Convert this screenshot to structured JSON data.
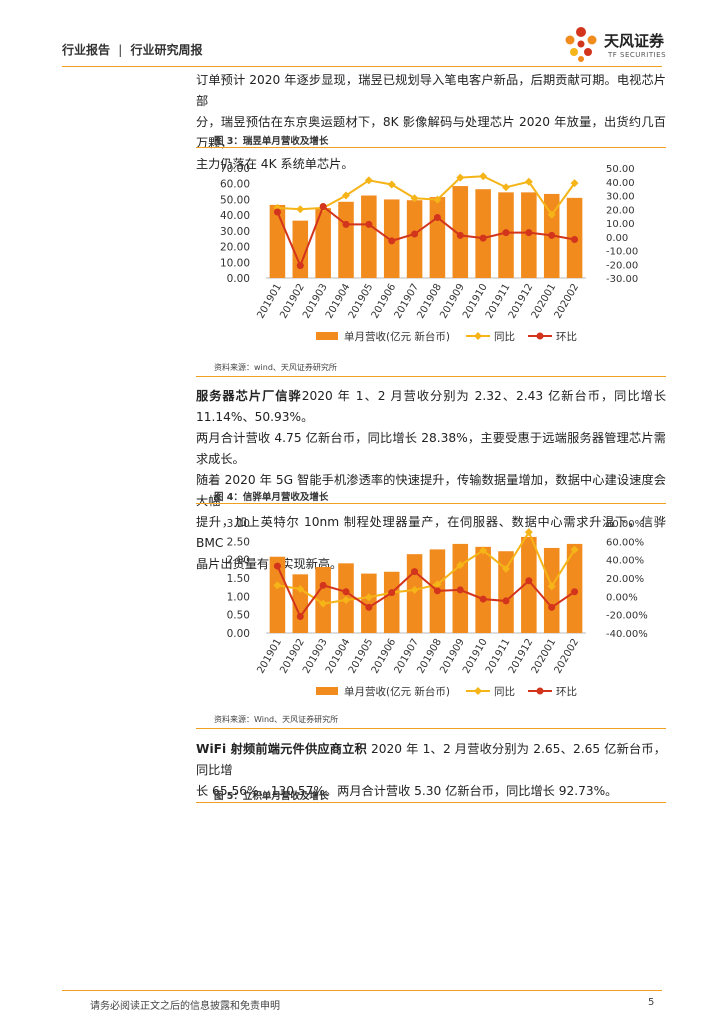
{
  "header": {
    "section": "行业报告",
    "separator": "|",
    "subsection": "行业研究周报",
    "logo_cn": "天风证券",
    "logo_en": "TF SECURITIES"
  },
  "paragraphs": {
    "p1_line1": "订单预计 2020 年逐步显现，瑞昱已规划导入笔电客户新品，后期贡献可期。电视芯片部",
    "p1_line2": "分，瑞昱预估在东京奥运题材下，8K 影像解码与处理芯片 2020 年放量，出货约几百万颗，",
    "p1_line3": "主力仍落在 4K 系统单芯片。",
    "p2_bold": "服务器芯片厂信骅",
    "p2_line1_rest": "2020 年 1、2 月营收分别为 2.32、2.43 亿新台币，同比增长 11.14%、50.93%。",
    "p2_line2": "两月合计营收 4.75 亿新台币，同比增长 28.38%，主要受惠于远端服务器管理芯片需求成长。",
    "p2_line3": "随着 2020 年 5G 智能手机渗透率的快速提升，传输数据量增加，数据中心建设速度会大幅",
    "p2_line4": "提升，加上英特尔 10nm 制程处理器量产，在伺服器、数据中心需求升温下，信骅 BMC",
    "p2_line5": "晶片出货量有望实现新高。",
    "p3_bold": "WiFi 射频前端元件供应商立积",
    "p3_line1_rest": " 2020 年 1、2 月营收分别为 2.65、2.65 亿新台币，同比增",
    "p3_line2": "长 65.56%、130.57%。两月合计营收 5.30 亿新台币，同比增长 92.73%。"
  },
  "figures": {
    "fig3_title": "图 3：瑞昱单月营收及增长",
    "fig3_source": "资料来源：wind、天风证券研究所",
    "fig4_title": "图 4：信骅单月营收及增长",
    "fig4_source": "资料来源：Wind、天风证券研究所",
    "fig5_title": "图 5：立积单月营收及增长"
  },
  "chart_data": [
    {
      "type": "bar",
      "categories": [
        "201901",
        "201902",
        "201903",
        "201904",
        "201905",
        "201906",
        "201907",
        "201908",
        "201909",
        "201910",
        "201911",
        "201912",
        "202001",
        "202002"
      ],
      "series": [
        {
          "name": "单月营收(亿元 新台币)",
          "type": "bar",
          "axis": "left",
          "color": "#f28b1e",
          "values": [
            46.5,
            36.5,
            44.5,
            48.5,
            52.5,
            50,
            49.5,
            51.5,
            58.5,
            56.5,
            54.5,
            54.5,
            53.5,
            51
          ]
        },
        {
          "name": "同比",
          "type": "line",
          "axis": "right",
          "color": "#f5b418",
          "values": [
            21,
            20,
            21,
            30,
            41,
            38,
            28,
            27,
            43,
            44,
            36,
            40,
            16,
            39
          ]
        },
        {
          "name": "环比",
          "type": "line",
          "axis": "right",
          "color": "#d2341c",
          "values": [
            18,
            -21,
            22,
            9,
            9,
            -3,
            2,
            14,
            1,
            -1,
            3,
            3,
            1,
            -2
          ]
        }
      ],
      "left_ticks": [
        "70.00",
        "60.00",
        "50.00",
        "40.00",
        "30.00",
        "20.00",
        "10.00",
        "0.00"
      ],
      "right_ticks": [
        "50.00",
        "40.00",
        "30.00",
        "20.00",
        "10.00",
        "0.00",
        "-10.00",
        "-20.00",
        "-30.00"
      ],
      "ylim_left": [
        0,
        70
      ],
      "ylim_right": [
        -30,
        50
      ],
      "legend": "bottom"
    },
    {
      "type": "bar",
      "categories": [
        "201901",
        "201902",
        "201903",
        "201904",
        "201905",
        "201906",
        "201907",
        "201908",
        "201909",
        "201910",
        "201911",
        "201912",
        "202001",
        "202002"
      ],
      "series": [
        {
          "name": "单月营收(亿元 新台币)",
          "type": "bar",
          "axis": "left",
          "color": "#f28b1e",
          "values": [
            2.08,
            1.6,
            1.8,
            1.9,
            1.62,
            1.67,
            2.15,
            2.28,
            2.43,
            2.35,
            2.23,
            2.62,
            2.32,
            2.43
          ]
        },
        {
          "name": "同比",
          "type": "line",
          "axis": "right",
          "color": "#f5b418",
          "values": [
            12,
            8,
            -8,
            -4,
            -1,
            4,
            7,
            13,
            34,
            50,
            30,
            70,
            11,
            51
          ]
        },
        {
          "name": "环比",
          "type": "line",
          "axis": "right",
          "color": "#d2341c",
          "values": [
            33,
            -22,
            12,
            5,
            -12,
            4,
            27,
            6,
            7,
            -3,
            -5,
            17,
            -12,
            5
          ]
        }
      ],
      "left_ticks": [
        "3.00",
        "2.50",
        "2.00",
        "1.50",
        "1.00",
        "0.50",
        "0.00"
      ],
      "right_ticks": [
        "80.00%",
        "60.00%",
        "40.00%",
        "20.00%",
        "0.00%",
        "-20.00%",
        "-40.00%"
      ],
      "ylim_left": [
        0,
        3
      ],
      "ylim_right": [
        -40,
        80
      ],
      "legend": "bottom"
    }
  ],
  "footer": {
    "disclaimer": "请务必阅读正文之后的信息披露和免责申明",
    "page": "5"
  }
}
